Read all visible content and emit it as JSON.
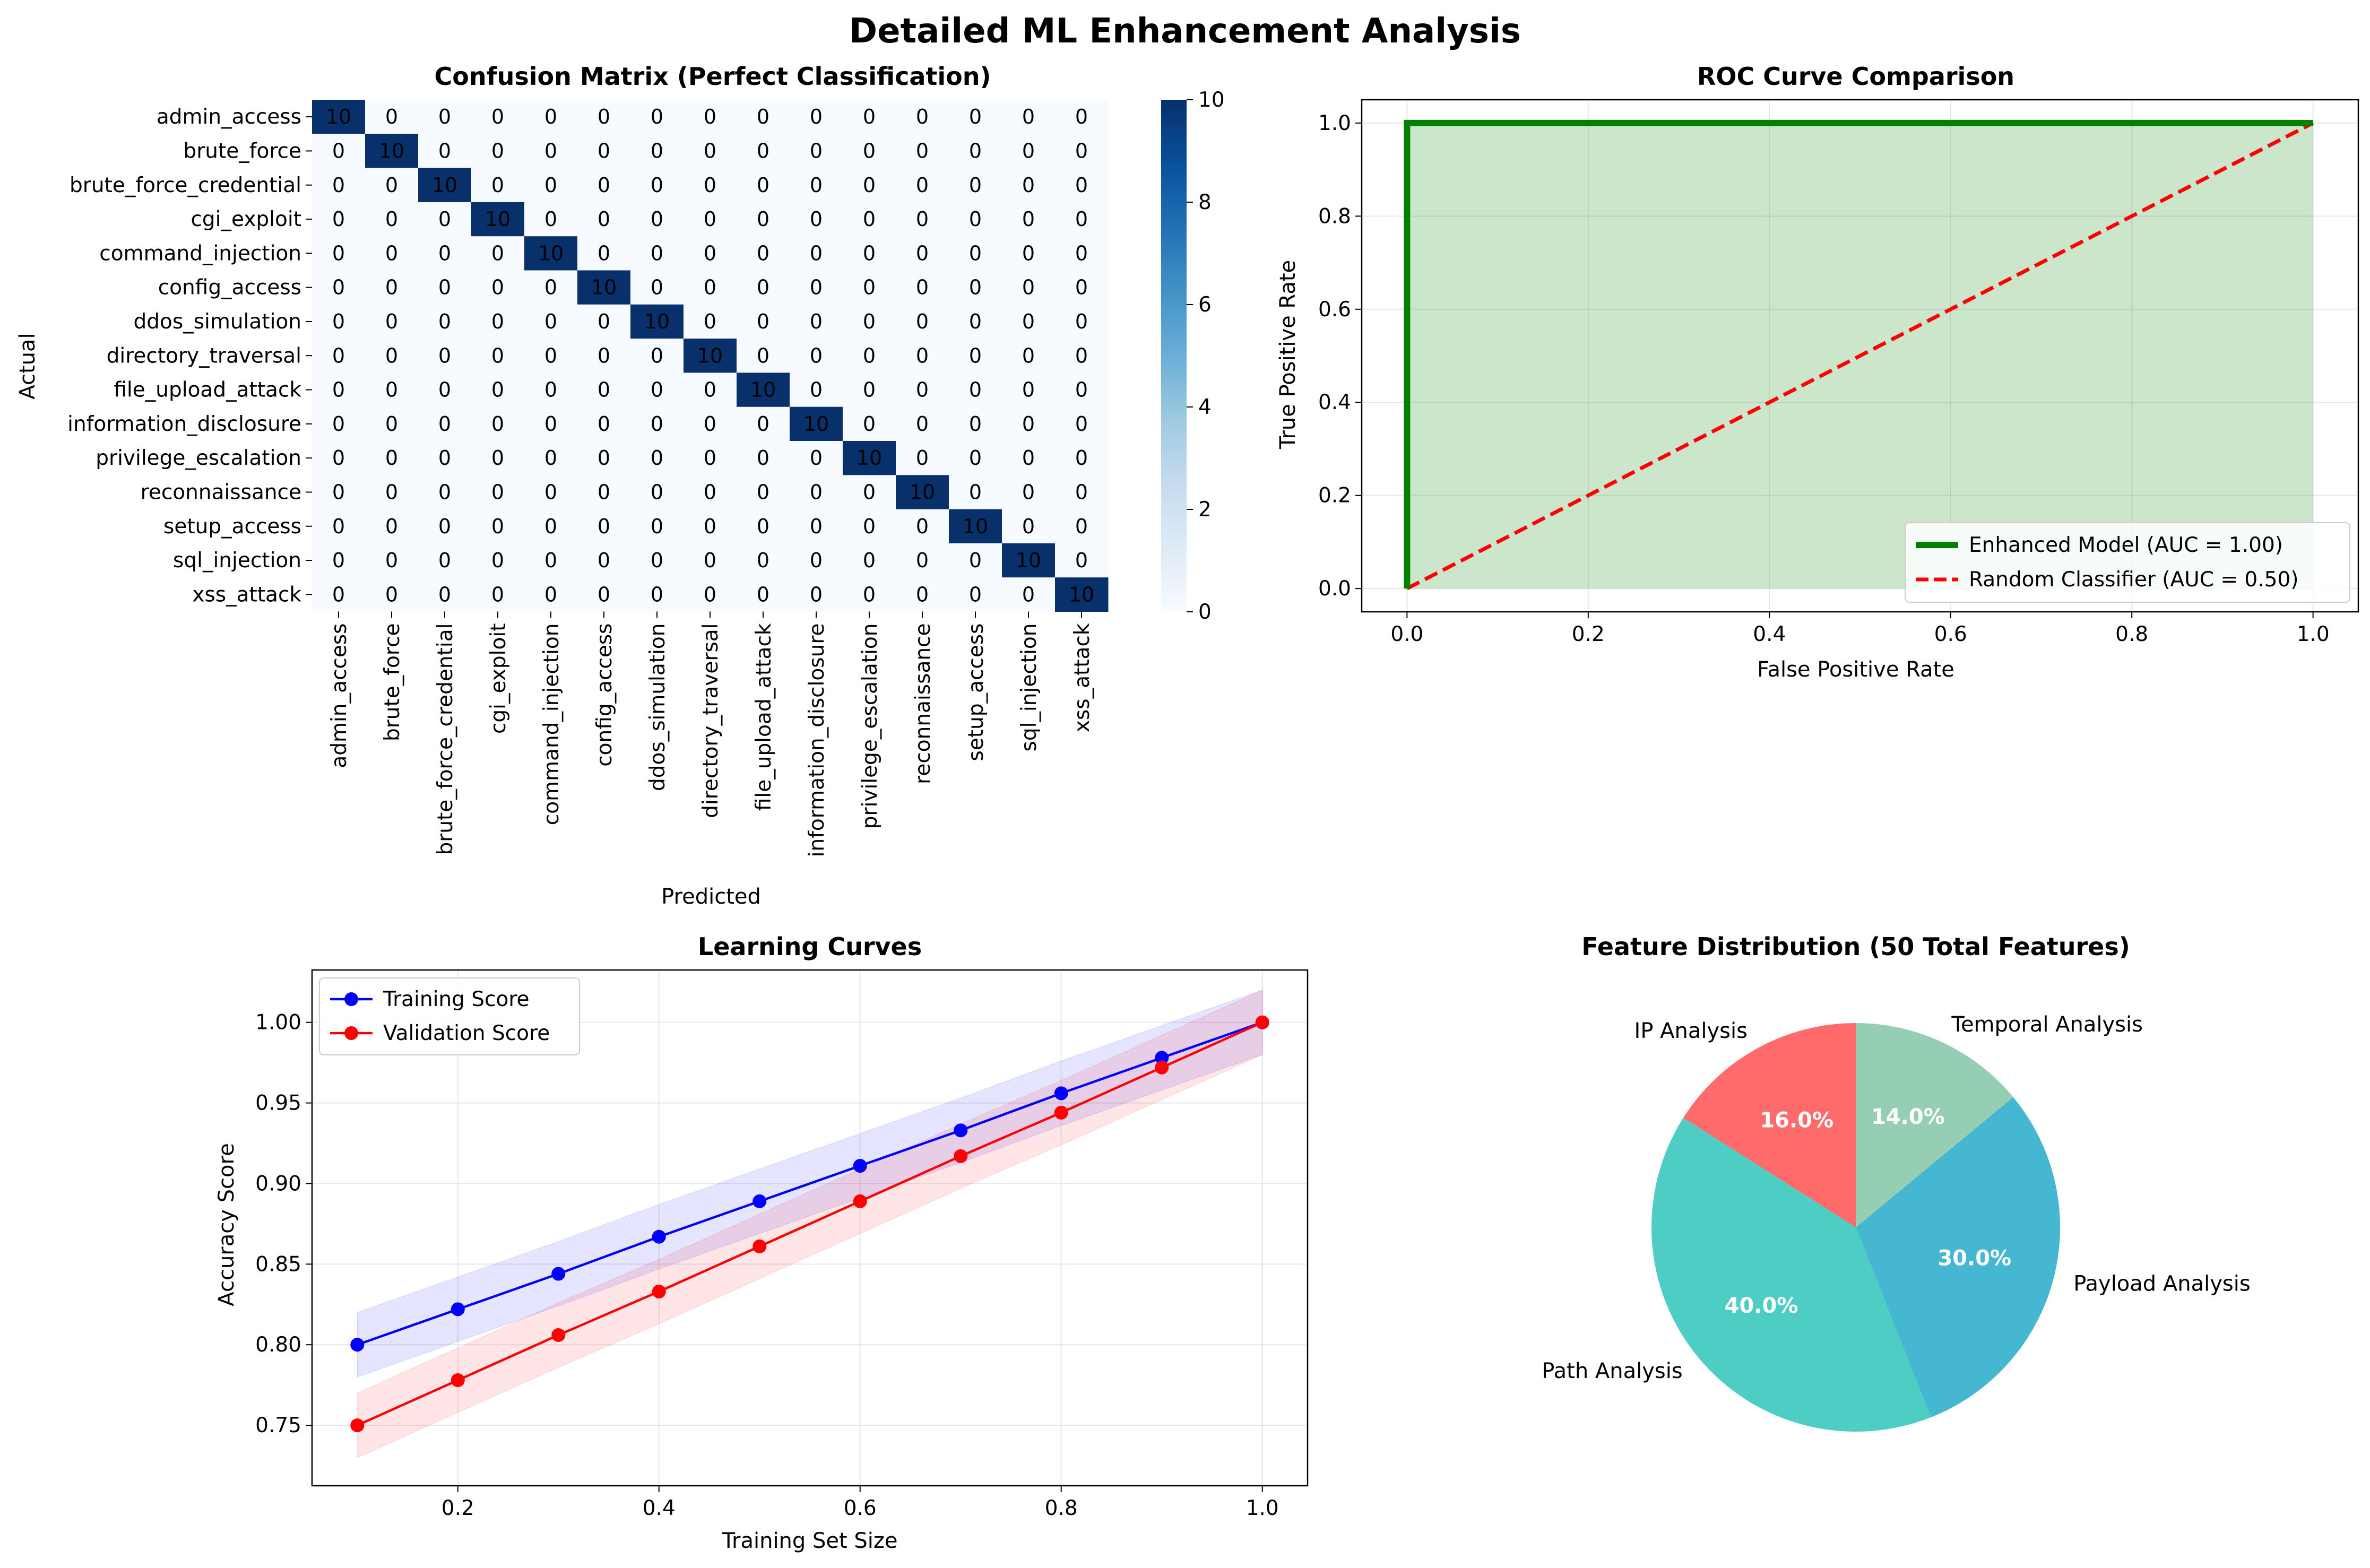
{
  "figure": {
    "title": "Detailed ML Enhancement Analysis"
  },
  "chart_data": [
    {
      "type": "heatmap",
      "title": "Confusion Matrix (Perfect Classification)",
      "xlabel": "Predicted",
      "ylabel": "Actual",
      "classes": [
        "admin_access",
        "brute_force",
        "brute_force_credential",
        "cgi_exploit",
        "command_injection",
        "config_access",
        "ddos_simulation",
        "directory_traversal",
        "file_upload_attack",
        "information_disclosure",
        "privilege_escalation",
        "reconnaissance",
        "setup_access",
        "sql_injection",
        "xss_attack"
      ],
      "diagonal_value": 10,
      "off_diagonal_value": 0,
      "colorbar": {
        "min": 0,
        "max": 10,
        "ticks": [
          0,
          2,
          4,
          6,
          8,
          10
        ],
        "colormap": "Blues"
      }
    },
    {
      "type": "line",
      "title": "ROC Curve Comparison",
      "xlabel": "False Positive Rate",
      "ylabel": "True Positive Rate",
      "xlim": [
        -0.05,
        1.05
      ],
      "ylim": [
        -0.05,
        1.05
      ],
      "xticks": [
        "0.0",
        "0.2",
        "0.4",
        "0.6",
        "0.8",
        "1.0"
      ],
      "yticks": [
        "0.0",
        "0.2",
        "0.4",
        "0.6",
        "0.8",
        "1.0"
      ],
      "grid": true,
      "legend_position": "lower-right",
      "series": [
        {
          "name": "Enhanced Model (AUC = 1.00)",
          "color": "#008000",
          "style": "solid",
          "x": [
            0,
            0,
            1
          ],
          "y": [
            0,
            1,
            1
          ]
        },
        {
          "name": "Random Classifier (AUC = 0.50)",
          "color": "#ff0000",
          "style": "dashed",
          "x": [
            0,
            1
          ],
          "y": [
            0,
            1
          ]
        }
      ],
      "fill": {
        "color": "#008000",
        "between": "Enhanced Model (AUC = 1.00)",
        "and": "zero"
      }
    },
    {
      "type": "line",
      "title": "Learning Curves",
      "xlabel": "Training Set Size",
      "ylabel": "Accuracy Score",
      "xticks": [
        "0.2",
        "0.4",
        "0.6",
        "0.8",
        "1.0"
      ],
      "yticks": [
        "0.75",
        "0.80",
        "0.85",
        "0.90",
        "0.95",
        "1.00"
      ],
      "grid": true,
      "legend_position": "top-left",
      "x": [
        0.1,
        0.2,
        0.3,
        0.4,
        0.5,
        0.6,
        0.7,
        0.8,
        0.9,
        1.0
      ],
      "series": [
        {
          "name": "Training Score",
          "color": "#0000ff",
          "values": [
            0.8,
            0.822,
            0.844,
            0.867,
            0.889,
            0.911,
            0.933,
            0.956,
            0.978,
            1.0
          ],
          "band": 0.02
        },
        {
          "name": "Validation Score",
          "color": "#ff0000",
          "values": [
            0.75,
            0.778,
            0.806,
            0.833,
            0.861,
            0.889,
            0.917,
            0.944,
            0.972,
            1.0
          ],
          "band": 0.02
        }
      ]
    },
    {
      "type": "pie",
      "title": "Feature Distribution (50 Total Features)",
      "slices": [
        {
          "label": "IP Analysis",
          "value": 16.0,
          "pct_label": "16.0%",
          "color": "#ff6b6b"
        },
        {
          "label": "Path Analysis",
          "value": 40.0,
          "pct_label": "40.0%",
          "color": "#4ecdc4"
        },
        {
          "label": "Payload Analysis",
          "value": 30.0,
          "pct_label": "30.0%",
          "color": "#45b7d1"
        },
        {
          "label": "Temporal Analysis",
          "value": 14.0,
          "pct_label": "14.0%",
          "color": "#96ceb4"
        }
      ]
    }
  ]
}
